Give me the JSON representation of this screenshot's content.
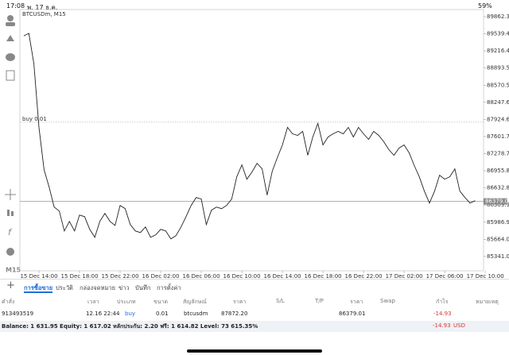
{
  "status_bar": {
    "time": "17:08",
    "date": "พ. 17 ธ.ค.",
    "battery": "59%"
  },
  "toolbar": {
    "timeframe": "M15"
  },
  "chart_data": {
    "type": "line",
    "title": "BTCUSDm, M15",
    "color": "#222222",
    "x": [
      "15 Dec 12:30",
      "15 Dec 13:00",
      "15 Dec 13:30",
      "15 Dec 14:00",
      "15 Dec 14:30",
      "15 Dec 15:00",
      "15 Dec 15:30",
      "15 Dec 16:00",
      "15 Dec 16:30",
      "15 Dec 17:00",
      "15 Dec 17:30",
      "15 Dec 18:00",
      "15 Dec 18:30",
      "15 Dec 19:00",
      "15 Dec 19:30",
      "15 Dec 20:00",
      "15 Dec 20:30",
      "15 Dec 21:00",
      "15 Dec 21:30",
      "15 Dec 22:00",
      "15 Dec 22:30",
      "15 Dec 23:00",
      "15 Dec 23:30",
      "16 Dec 00:00",
      "16 Dec 00:30",
      "16 Dec 01:00",
      "16 Dec 01:30",
      "16 Dec 02:00",
      "16 Dec 02:30",
      "16 Dec 03:00",
      "16 Dec 03:30",
      "16 Dec 04:00",
      "16 Dec 04:30",
      "16 Dec 05:00",
      "16 Dec 05:30",
      "16 Dec 06:00",
      "16 Dec 06:30",
      "16 Dec 07:00",
      "16 Dec 07:30",
      "16 Dec 08:00",
      "16 Dec 08:30",
      "16 Dec 09:00",
      "16 Dec 09:30",
      "16 Dec 10:00",
      "16 Dec 10:30",
      "16 Dec 11:00",
      "16 Dec 11:30",
      "16 Dec 12:00",
      "16 Dec 12:30",
      "16 Dec 13:00",
      "16 Dec 13:30",
      "16 Dec 14:00",
      "16 Dec 14:30",
      "16 Dec 15:00",
      "16 Dec 15:30",
      "16 Dec 16:00",
      "16 Dec 16:30",
      "16 Dec 17:00",
      "16 Dec 17:30",
      "16 Dec 18:00",
      "16 Dec 18:30",
      "16 Dec 19:00",
      "16 Dec 19:30",
      "16 Dec 20:00",
      "16 Dec 20:30",
      "16 Dec 21:00",
      "16 Dec 21:30",
      "16 Dec 22:00",
      "16 Dec 22:30",
      "16 Dec 23:00",
      "16 Dec 23:30",
      "17 Dec 00:00",
      "17 Dec 00:30",
      "17 Dec 01:00",
      "17 Dec 01:30",
      "17 Dec 02:00",
      "17 Dec 02:30",
      "17 Dec 03:00",
      "17 Dec 03:30",
      "17 Dec 04:00",
      "17 Dec 04:30",
      "17 Dec 05:00",
      "17 Dec 05:30",
      "17 Dec 06:00",
      "17 Dec 06:30",
      "17 Dec 07:00",
      "17 Dec 07:30",
      "17 Dec 08:00",
      "17 Dec 08:30",
      "17 Dec 09:00"
    ],
    "values": [
      89502,
      89547,
      88976,
      87774,
      86978,
      86648,
      86272,
      86197,
      85822,
      86002,
      85822,
      86122,
      86092,
      85852,
      85702,
      86002,
      86152,
      86002,
      85927,
      86302,
      86242,
      85942,
      85822,
      85792,
      85897,
      85702,
      85747,
      85852,
      85822,
      85672,
      85732,
      85897,
      86092,
      86302,
      86452,
      86422,
      85942,
      86212,
      86272,
      86242,
      86302,
      86422,
      86843,
      87068,
      86798,
      86933,
      87098,
      86993,
      86497,
      86948,
      87204,
      87444,
      87774,
      87654,
      87624,
      87699,
      87249,
      87594,
      87849,
      87444,
      87594,
      87654,
      87699,
      87654,
      87774,
      87594,
      87774,
      87654,
      87549,
      87699,
      87624,
      87504,
      87354,
      87249,
      87384,
      87444,
      87294,
      87054,
      86843,
      86572,
      86347,
      86572,
      86873,
      86798,
      86843,
      86993,
      86572,
      86452,
      86347,
      86392
    ],
    "xlim": [
      "15 Dec 12:07",
      "17 Dec 09:50"
    ],
    "xticks": [
      "15 Dec 14:00",
      "15 Dec 18:00",
      "15 Dec 22:00",
      "16 Dec 02:00",
      "16 Dec 06:00",
      "16 Dec 10:00",
      "16 Dec 14:00",
      "16 Dec 18:00",
      "16 Dec 22:00",
      "17 Dec 02:00",
      "17 Dec 06:00",
      "17 Dec 10:00"
    ],
    "ylim": [
      85070,
      89997
    ],
    "yticks": [
      89862.35,
      {
        "value": 89539.4,
        "label": "89539.40"
      },
      89216.45,
      {
        "value": 88893.5,
        "label": "88893.50"
      },
      88570.55,
      {
        "value": 88247.6,
        "label": "88247.60"
      },
      87924.65,
      {
        "value": 87601.7,
        "label": "87601.70"
      },
      87278.75,
      {
        "value": 86955.8,
        "label": "86955.80"
      },
      86632.85,
      {
        "value": 86309.9,
        "label": "86309.90"
      },
      85986.95,
      {
        "value": 85664,
        "label": "85664.00"
      },
      85341.05
    ],
    "buy_line": {
      "label": "buy 0.01",
      "value": 87872.2
    },
    "price_line": 86379.01
  },
  "tabs": [
    "การซื้อขาย",
    "ประวัติ",
    "กล่องจดหมาย",
    "ข่าว",
    "บันทึก",
    "การตั้งค่า"
  ],
  "table": {
    "columns": [
      "คำสั่ง",
      "เวลา",
      "ประเภท",
      "ขนาด",
      "สัญลักษณ์",
      "ราคา",
      "S/L",
      "T/P",
      "ราคา",
      "Swap",
      "กำไร",
      "หมายเหตุ"
    ],
    "rows": [
      [
        "913493519",
        "12.16 22:44",
        "buy",
        "0.01",
        "btcusdm",
        "87872.20",
        null,
        null,
        "86379.01",
        null,
        "-14.93",
        null
      ]
    ]
  },
  "summary": {
    "text": "Balance: 1 631.95 Equity: 1 617.02 หลักประกัน: 2.20 ฟรี: 1 614.82 Level: 73 615.35%",
    "profit": "-14.93",
    "currency": "USD"
  }
}
